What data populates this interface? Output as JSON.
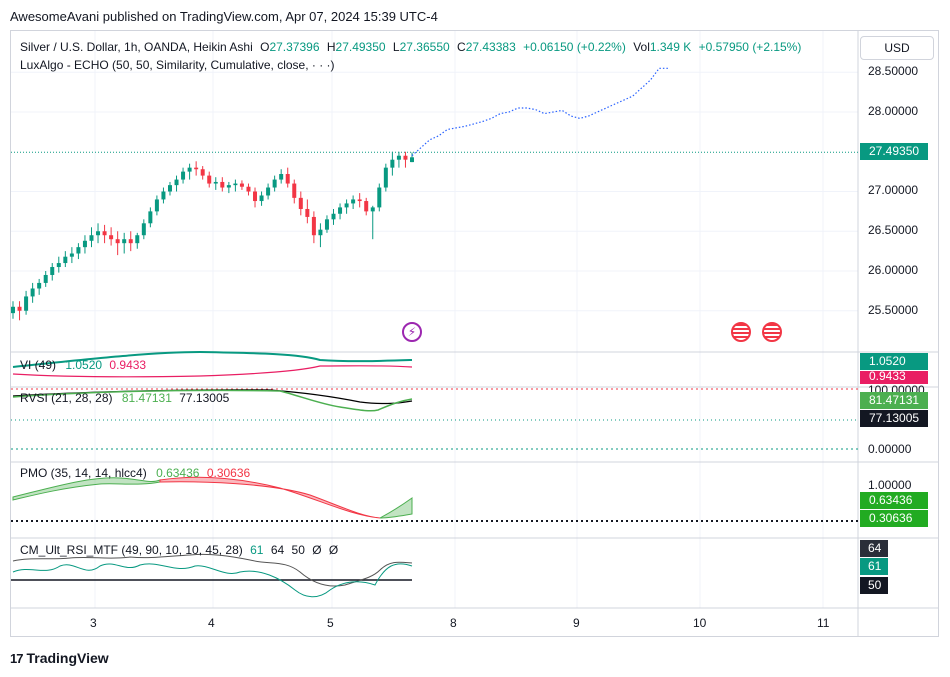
{
  "header": {
    "published": "AwesomeAvani published on TradingView.com, Apr 07, 2024 15:39 UTC-4"
  },
  "currency_button": "USD",
  "main_legend": {
    "symbol": "Silver / U.S. Dollar, 1h, OANDA, Heikin Ashi",
    "o_label": "O",
    "o_value": "27.37396",
    "h_label": "H",
    "h_value": "27.49350",
    "l_label": "L",
    "l_value": "27.36550",
    "c_label": "C",
    "c_value": "27.43383",
    "change": "+0.06150 (+0.22%)",
    "vol_label": "Vol",
    "vol_value": "1.349 K",
    "vol_change": "+0.57950 (+2.15%)",
    "indicator": "LuxAlgo - ECHO (50, 50, Similarity, Cumulative, close, · · ·)"
  },
  "price_axis": {
    "ticks": [
      "28.50000",
      "28.00000",
      "27.00000",
      "26.50000",
      "26.00000",
      "25.50000"
    ],
    "current": "27.49350"
  },
  "vi": {
    "label": "VI (49)",
    "plus": "1.0520",
    "minus": "0.9433"
  },
  "rvsi": {
    "label": "RVSI (21, 28, 28)",
    "v1": "81.47131",
    "v2": "77.13005",
    "ticks": [
      "100.00000",
      "0.00000"
    ]
  },
  "pmo": {
    "label": "PMO (35, 14, 14, hlcc4)",
    "v1": "0.63436",
    "v2": "0.30636",
    "tick": "1.00000"
  },
  "cm": {
    "label": "CM_Ult_RSI_MTF (49, 90, 10, 10, 45, 28)",
    "v1": "61",
    "v2": "64",
    "v3": "50",
    "v4": "Ø",
    "v5": "Ø",
    "tag_top": "64",
    "tag_mid": "61",
    "tag_bot": "50"
  },
  "x_axis": {
    "labels": [
      "3",
      "4",
      "5",
      "8",
      "9",
      "10",
      "11"
    ]
  },
  "brand": {
    "name": "TradingView",
    "logo": "17"
  },
  "colors": {
    "up": "#089981",
    "down": "#f23645",
    "bg": "#ffffff",
    "grid": "#f0f3fa",
    "vi_plus": "#089981",
    "vi_minus": "#e91e63",
    "rvsi": "#000000",
    "pmo_green": "#4caf50",
    "pmo_red": "#f23645"
  },
  "chart_data": {
    "type": "candlestick",
    "title": "Silver / U.S. Dollar, 1h, OANDA, Heikin Ashi",
    "ylim": [
      25.2,
      28.75
    ],
    "xlabel": "",
    "ylabel": "",
    "x_ticks": [
      "3",
      "4",
      "5",
      "8",
      "9",
      "10",
      "11"
    ],
    "candles": [
      [
        25.47,
        25.62,
        25.4,
        25.55
      ],
      [
        25.55,
        25.62,
        25.38,
        25.5
      ],
      [
        25.5,
        25.75,
        25.45,
        25.68
      ],
      [
        25.68,
        25.85,
        25.6,
        25.78
      ],
      [
        25.78,
        25.9,
        25.7,
        25.85
      ],
      [
        25.85,
        26.0,
        25.8,
        25.95
      ],
      [
        25.95,
        26.1,
        25.88,
        26.05
      ],
      [
        26.05,
        26.18,
        25.98,
        26.1
      ],
      [
        26.1,
        26.25,
        26.05,
        26.18
      ],
      [
        26.18,
        26.3,
        26.1,
        26.22
      ],
      [
        26.22,
        26.35,
        26.15,
        26.3
      ],
      [
        26.3,
        26.45,
        26.22,
        26.38
      ],
      [
        26.38,
        26.55,
        26.3,
        26.45
      ],
      [
        26.45,
        26.6,
        26.35,
        26.5
      ],
      [
        26.5,
        26.58,
        26.35,
        26.45
      ],
      [
        26.45,
        26.55,
        26.32,
        26.4
      ],
      [
        26.4,
        26.5,
        26.2,
        26.35
      ],
      [
        26.35,
        26.48,
        26.22,
        26.4
      ],
      [
        26.4,
        26.5,
        26.25,
        26.35
      ],
      [
        26.35,
        26.48,
        26.28,
        26.45
      ],
      [
        26.45,
        26.65,
        26.4,
        26.6
      ],
      [
        26.6,
        26.8,
        26.55,
        26.75
      ],
      [
        26.75,
        26.95,
        26.7,
        26.9
      ],
      [
        26.9,
        27.05,
        26.85,
        27.0
      ],
      [
        27.0,
        27.12,
        26.95,
        27.08
      ],
      [
        27.08,
        27.2,
        27.0,
        27.15
      ],
      [
        27.15,
        27.3,
        27.1,
        27.25
      ],
      [
        27.25,
        27.35,
        27.15,
        27.3
      ],
      [
        27.3,
        27.38,
        27.2,
        27.28
      ],
      [
        27.28,
        27.32,
        27.15,
        27.2
      ],
      [
        27.2,
        27.25,
        27.05,
        27.1
      ],
      [
        27.1,
        27.18,
        27.02,
        27.12
      ],
      [
        27.12,
        27.18,
        27.0,
        27.05
      ],
      [
        27.05,
        27.12,
        26.98,
        27.08
      ],
      [
        27.08,
        27.15,
        27.0,
        27.1
      ],
      [
        27.1,
        27.14,
        27.02,
        27.06
      ],
      [
        27.06,
        27.1,
        26.95,
        27.0
      ],
      [
        27.0,
        27.05,
        26.8,
        26.88
      ],
      [
        26.88,
        27.0,
        26.82,
        26.95
      ],
      [
        26.95,
        27.1,
        26.9,
        27.05
      ],
      [
        27.05,
        27.2,
        27.0,
        27.15
      ],
      [
        27.15,
        27.28,
        27.1,
        27.22
      ],
      [
        27.22,
        27.3,
        27.05,
        27.1
      ],
      [
        27.1,
        27.15,
        26.85,
        26.92
      ],
      [
        26.92,
        27.0,
        26.7,
        26.78
      ],
      [
        26.78,
        26.9,
        26.6,
        26.68
      ],
      [
        26.68,
        26.75,
        26.35,
        26.45
      ],
      [
        26.45,
        26.6,
        26.3,
        26.52
      ],
      [
        26.52,
        26.7,
        26.48,
        26.65
      ],
      [
        26.65,
        26.78,
        26.58,
        26.72
      ],
      [
        26.72,
        26.85,
        26.65,
        26.8
      ],
      [
        26.8,
        26.9,
        26.72,
        26.85
      ],
      [
        26.85,
        26.95,
        26.78,
        26.9
      ],
      [
        26.9,
        26.98,
        26.8,
        26.88
      ],
      [
        26.88,
        26.92,
        26.7,
        26.75
      ],
      [
        26.75,
        26.82,
        26.4,
        26.8
      ],
      [
        26.8,
        27.1,
        26.75,
        27.05
      ],
      [
        27.05,
        27.35,
        27.0,
        27.3
      ],
      [
        27.3,
        27.5,
        27.2,
        27.4
      ],
      [
        27.4,
        27.5,
        27.3,
        27.45
      ],
      [
        27.45,
        27.5,
        27.3,
        27.4
      ],
      [
        27.37,
        27.49,
        27.37,
        27.43
      ]
    ],
    "echo_projection": [
      27.45,
      27.55,
      27.65,
      27.7,
      27.78,
      27.8,
      27.82,
      27.85,
      27.88,
      27.92,
      27.98,
      28.0,
      28.05,
      28.05,
      28.03,
      27.98,
      28.0,
      28.02,
      27.95,
      27.92,
      27.95,
      28.0,
      28.05,
      28.1,
      28.15,
      28.2,
      28.3,
      28.4,
      28.55,
      28.55
    ],
    "current_price": 27.4935
  }
}
